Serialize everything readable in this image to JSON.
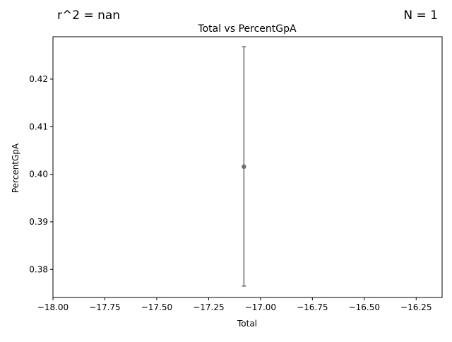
{
  "annotations": {
    "left": "r^2 = nan",
    "right": "N = 1"
  },
  "chart_data": {
    "type": "scatter",
    "title": "Total vs PercentGpA",
    "xlabel": "Total",
    "ylabel": "PercentGpA",
    "xlim": [
      -18.0,
      -16.125
    ],
    "ylim": [
      0.3741,
      0.4289
    ],
    "xticks": [
      -18.0,
      -17.75,
      -17.5,
      -17.25,
      -17.0,
      -16.75,
      -16.5,
      -16.25
    ],
    "xtick_labels": [
      "−18.00",
      "−17.75",
      "−17.50",
      "−17.25",
      "−17.00",
      "−16.75",
      "−16.50",
      "−16.25"
    ],
    "yticks": [
      0.38,
      0.39,
      0.4,
      0.41,
      0.42
    ],
    "ytick_labels": [
      "0.38",
      "0.39",
      "0.40",
      "0.41",
      "0.42"
    ],
    "grid": false,
    "series": [
      {
        "color": "#6e6e6e",
        "points": [
          {
            "x": -17.08,
            "y": 0.4016,
            "err_low": 0.3765,
            "err_high": 0.4268
          }
        ]
      }
    ]
  }
}
